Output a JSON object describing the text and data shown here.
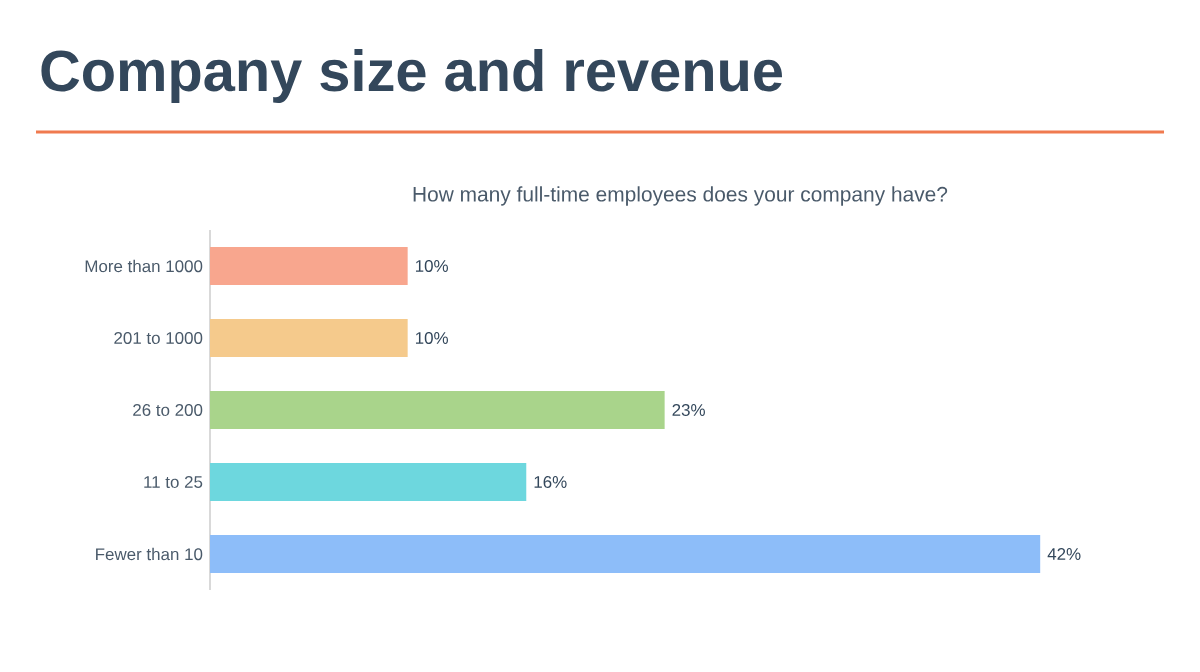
{
  "chart_data": {
    "type": "bar",
    "orientation": "horizontal",
    "title": "Company size and revenue",
    "subtitle": "How many full-time employees does your company have?",
    "categories": [
      "More than 1000",
      "201 to 1000",
      "26 to 200",
      "11 to 25",
      "Fewer than 10"
    ],
    "values": [
      10,
      10,
      23,
      16,
      42
    ],
    "colors": [
      "#f8a68e",
      "#f5ca8c",
      "#a9d48b",
      "#6dd7de",
      "#8dbdf9"
    ],
    "value_labels": [
      "10%",
      "10%",
      "23%",
      "16%",
      "42%"
    ]
  }
}
